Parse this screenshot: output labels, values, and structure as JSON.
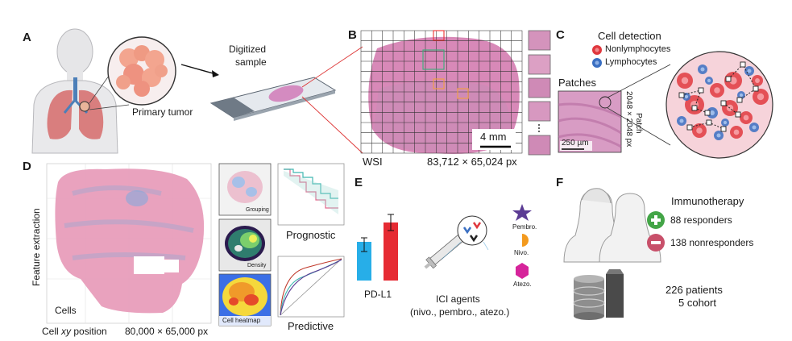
{
  "panels": {
    "a": {
      "letter": "A",
      "primary_tumor": "Primary tumor",
      "digitized_line1": "Digitized",
      "digitized_line2": "sample"
    },
    "b": {
      "letter": "B",
      "scale_bar": "4 mm",
      "wsi_label": "WSI",
      "dimensions": "83,712 × 65,024 px"
    },
    "c": {
      "letter": "C",
      "title": "Cell detection",
      "legend": [
        "Nonlymphocytes",
        "Lymphocytes"
      ],
      "patches_label": "Patches",
      "patch_size_line1": "2048 × 2048 px",
      "patch_size_line2": "Patch",
      "scale_bar": "250 µm"
    },
    "d": {
      "letter": "D",
      "y_axis_label": "Feature extraction",
      "cells_label": "Cells",
      "x_axis_label_prefix": "Cell ",
      "x_axis_label_italic": "xy",
      "x_axis_label_suffix": " position",
      "dimensions": "80,000 × 65,000 px",
      "thumbs": [
        "Grouping",
        "Density",
        "Cell heatmap"
      ],
      "prognostic": "Prognostic",
      "predictive": "Predictive"
    },
    "e": {
      "letter": "E",
      "pdl1_label": "PD-L1",
      "drugs": [
        "Pembro.",
        "Nivo.",
        "Atezo."
      ],
      "ici_line1": "ICI agents",
      "ici_line2": "(nivo., pembro., atezo.)"
    },
    "f": {
      "letter": "F",
      "immunotherapy": "Immunotherapy",
      "responders": "88 responders",
      "nonresponders": "138 nonresponders",
      "patients": "226 patients",
      "cohort": "5 cohort"
    }
  },
  "colors": {
    "tissue_pink": "#d889b8",
    "nonlymph_red": "#e0383e",
    "lymph_blue": "#3a6fc2",
    "bar_blue": "#27aee8",
    "bar_red": "#e62b33",
    "plus_green": "#43a547",
    "minus_red": "#c8506a",
    "pembro_purple": "#5b3b94",
    "nivo_orange": "#f39a1e",
    "atezo_magenta": "#d6249b"
  }
}
